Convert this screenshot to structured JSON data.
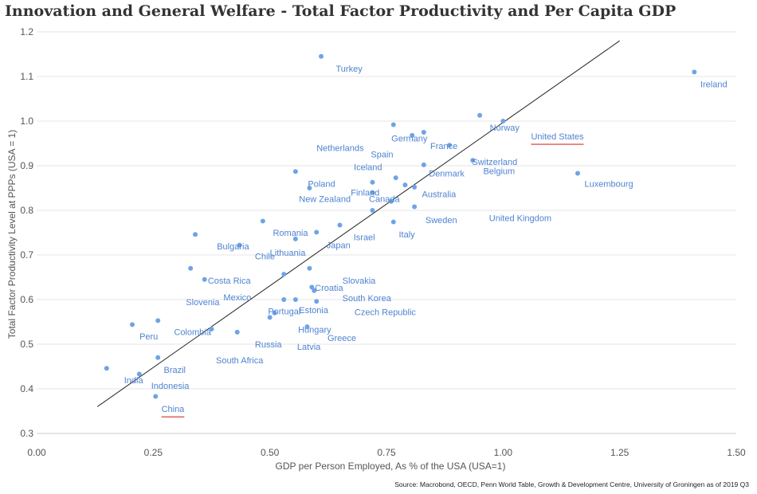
{
  "title": "Innovation and General Welfare - Total Factor Productivity and Per Capita GDP",
  "source": "Source: Macrobond, OECD, Penn World Table, Growth & Development Centre, University of Groningen as of 2019 Q3",
  "colors": {
    "point": "#6ea4e6",
    "label": "#4f83d0",
    "underline": "#d9302c",
    "trend": "#222222",
    "grid": "#e6e6e6",
    "axis_text": "#555555"
  },
  "chart_data": {
    "type": "scatter",
    "title": "Innovation and General Welfare - Total Factor Productivity and Per Capita GDP",
    "xlabel": "GDP per Person Employed, As % of the USA (USA=1)",
    "ylabel": "Total Factor Productivity Level at PPPs (USA = 1)",
    "xlim": [
      0,
      1.5
    ],
    "ylim": [
      0.3,
      1.2
    ],
    "xticks": [
      "0.00",
      "0.25",
      "0.50",
      "0.75",
      "1.00",
      "1.25",
      "1.50"
    ],
    "yticks": [
      "0.3",
      "0.4",
      "0.5",
      "0.6",
      "0.7",
      "0.8",
      "0.9",
      "1.0",
      "1.1",
      "1.2"
    ],
    "grid": "horizontal",
    "trendline": {
      "x": [
        0.13,
        1.25
      ],
      "y": [
        0.36,
        1.18
      ]
    },
    "highlighted": [
      "United States",
      "China"
    ],
    "points": [
      {
        "x": 0.61,
        "y": 1.145
      },
      {
        "x": 1.41,
        "y": 1.11
      },
      {
        "x": 0.95,
        "y": 1.013
      },
      {
        "x": 1.0,
        "y": 1.0
      },
      {
        "x": 0.765,
        "y": 0.992
      },
      {
        "x": 0.83,
        "y": 0.975
      },
      {
        "x": 0.805,
        "y": 0.968
      },
      {
        "x": 0.885,
        "y": 0.946
      },
      {
        "x": 0.935,
        "y": 0.912
      },
      {
        "x": 0.83,
        "y": 0.902
      },
      {
        "x": 0.555,
        "y": 0.887
      },
      {
        "x": 1.16,
        "y": 0.883
      },
      {
        "x": 0.77,
        "y": 0.873
      },
      {
        "x": 0.72,
        "y": 0.863
      },
      {
        "x": 0.79,
        "y": 0.857
      },
      {
        "x": 0.81,
        "y": 0.852
      },
      {
        "x": 0.585,
        "y": 0.85
      },
      {
        "x": 0.72,
        "y": 0.84
      },
      {
        "x": 0.76,
        "y": 0.82
      },
      {
        "x": 0.81,
        "y": 0.808
      },
      {
        "x": 0.72,
        "y": 0.8
      },
      {
        "x": 0.485,
        "y": 0.776
      },
      {
        "x": 0.765,
        "y": 0.774
      },
      {
        "x": 0.65,
        "y": 0.767
      },
      {
        "x": 0.6,
        "y": 0.751
      },
      {
        "x": 0.34,
        "y": 0.746
      },
      {
        "x": 0.555,
        "y": 0.736
      },
      {
        "x": 0.435,
        "y": 0.722
      },
      {
        "x": 0.33,
        "y": 0.67
      },
      {
        "x": 0.585,
        "y": 0.67
      },
      {
        "x": 0.53,
        "y": 0.657
      },
      {
        "x": 0.36,
        "y": 0.645
      },
      {
        "x": 0.59,
        "y": 0.628
      },
      {
        "x": 0.595,
        "y": 0.62
      },
      {
        "x": 0.53,
        "y": 0.6
      },
      {
        "x": 0.555,
        "y": 0.6
      },
      {
        "x": 0.6,
        "y": 0.596
      },
      {
        "x": 0.51,
        "y": 0.57
      },
      {
        "x": 0.5,
        "y": 0.56
      },
      {
        "x": 0.26,
        "y": 0.553
      },
      {
        "x": 0.205,
        "y": 0.544
      },
      {
        "x": 0.58,
        "y": 0.539
      },
      {
        "x": 0.375,
        "y": 0.534
      },
      {
        "x": 0.43,
        "y": 0.527
      },
      {
        "x": 0.26,
        "y": 0.47
      },
      {
        "x": 0.15,
        "y": 0.446
      },
      {
        "x": 0.22,
        "y": 0.433
      },
      {
        "x": 0.255,
        "y": 0.383
      }
    ],
    "annotations": [
      {
        "text": "Turkey",
        "x": 0.6415,
        "y": 1.118
      },
      {
        "text": "Ireland",
        "x": 1.423,
        "y": 1.083
      },
      {
        "text": "Norway",
        "x": 0.9715,
        "y": 0.986
      },
      {
        "text": "United States",
        "x": 1.06,
        "y": 0.966,
        "underline": true
      },
      {
        "text": "Germany",
        "x": 0.7605,
        "y": 0.962
      },
      {
        "text": "France",
        "x": 0.844,
        "y": 0.945
      },
      {
        "text": "Netherlands",
        "x": 0.6,
        "y": 0.94
      },
      {
        "text": "Spain",
        "x": 0.7165,
        "y": 0.926
      },
      {
        "text": "Switzerland",
        "x": 0.9335,
        "y": 0.909
      },
      {
        "text": "Iceland",
        "x": 0.68,
        "y": 0.897
      },
      {
        "text": "Belgium",
        "x": 0.9575,
        "y": 0.888
      },
      {
        "text": "Denmark",
        "x": 0.841,
        "y": 0.883
      },
      {
        "text": "Luxembourg",
        "x": 1.1745,
        "y": 0.86
      },
      {
        "text": "Poland",
        "x": 0.5815,
        "y": 0.86
      },
      {
        "text": "Finland",
        "x": 0.6735,
        "y": 0.84
      },
      {
        "text": "Australia",
        "x": 0.826,
        "y": 0.837
      },
      {
        "text": "New Zealand",
        "x": 0.5625,
        "y": 0.826
      },
      {
        "text": "Canada",
        "x": 0.7125,
        "y": 0.826
      },
      {
        "text": "Sweden",
        "x": 0.8335,
        "y": 0.779
      },
      {
        "text": "United Kingdom",
        "x": 0.97,
        "y": 0.783
      },
      {
        "text": "Romania",
        "x": 0.5065,
        "y": 0.75
      },
      {
        "text": "Italy",
        "x": 0.7765,
        "y": 0.746
      },
      {
        "text": "Israel",
        "x": 0.6795,
        "y": 0.74
      },
      {
        "text": "Japan",
        "x": 0.6215,
        "y": 0.722
      },
      {
        "text": "Bulgaria",
        "x": 0.3865,
        "y": 0.72
      },
      {
        "text": "Lithuania",
        "x": 0.5,
        "y": 0.705
      },
      {
        "text": "Chile",
        "x": 0.468,
        "y": 0.697
      },
      {
        "text": "Slovakia",
        "x": 0.6555,
        "y": 0.643
      },
      {
        "text": "Costa Rica",
        "x": 0.367,
        "y": 0.643
      },
      {
        "text": "Croatia",
        "x": 0.5965,
        "y": 0.627
      },
      {
        "text": "South Korea",
        "x": 0.6555,
        "y": 0.604
      },
      {
        "text": "Mexico",
        "x": 0.4005,
        "y": 0.605
      },
      {
        "text": "Slovenia",
        "x": 0.32,
        "y": 0.595
      },
      {
        "text": "Portugal",
        "x": 0.496,
        "y": 0.574
      },
      {
        "text": "Estonia",
        "x": 0.5625,
        "y": 0.577
      },
      {
        "text": "Czech Republic",
        "x": 0.6815,
        "y": 0.572
      },
      {
        "text": "Hungary",
        "x": 0.5605,
        "y": 0.533
      },
      {
        "text": "Colombia",
        "x": 0.2945,
        "y": 0.528
      },
      {
        "text": "Peru",
        "x": 0.2205,
        "y": 0.518
      },
      {
        "text": "Greece",
        "x": 0.6235,
        "y": 0.514
      },
      {
        "text": "Russia",
        "x": 0.468,
        "y": 0.5
      },
      {
        "text": "Latvia",
        "x": 0.5585,
        "y": 0.495
      },
      {
        "text": "South Africa",
        "x": 0.3845,
        "y": 0.464
      },
      {
        "text": "Brazil",
        "x": 0.2725,
        "y": 0.443
      },
      {
        "text": "India",
        "x": 0.1875,
        "y": 0.42
      },
      {
        "text": "Indonesia",
        "x": 0.2455,
        "y": 0.407
      },
      {
        "text": "China",
        "x": 0.2675,
        "y": 0.355,
        "underline": true
      }
    ]
  }
}
